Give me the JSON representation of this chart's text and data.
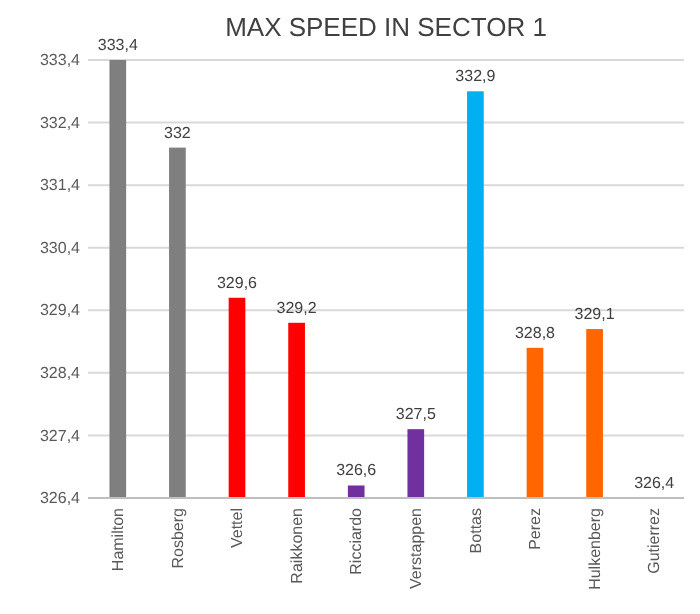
{
  "chart_data": {
    "type": "bar",
    "title": "MAX SPEED IN SECTOR 1",
    "categories": [
      "Hamilton",
      "Rosberg",
      "Vettel",
      "Raikkonen",
      "Ricciardo",
      "Verstappen",
      "Bottas",
      "Perez",
      "Hulkenberg",
      "Gutierrez"
    ],
    "values": [
      333.4,
      332,
      329.6,
      329.2,
      326.6,
      327.5,
      332.9,
      328.8,
      329.1,
      326.4
    ],
    "value_labels": [
      "333,4",
      "332",
      "329,6",
      "329,2",
      "326,6",
      "327,5",
      "332,9",
      "328,8",
      "329,1",
      "326,4"
    ],
    "colors": [
      "#7f7f7f",
      "#7f7f7f",
      "#ff0000",
      "#ff0000",
      "#7030a0",
      "#7030a0",
      "#00b0f0",
      "#ff6600",
      "#ff6600",
      "#7f7f7f"
    ],
    "ylim": [
      326.4,
      333.4
    ],
    "yticks": [
      {
        "value": 326.4,
        "label": "326,4"
      },
      {
        "value": 327.4,
        "label": "327,4"
      },
      {
        "value": 328.4,
        "label": "328,4"
      },
      {
        "value": 329.4,
        "label": "329,4"
      },
      {
        "value": 330.4,
        "label": "330,4"
      },
      {
        "value": 331.4,
        "label": "331,4"
      },
      {
        "value": 332.4,
        "label": "332,4"
      },
      {
        "value": 333.4,
        "label": "333,4"
      }
    ],
    "grid": "y"
  }
}
